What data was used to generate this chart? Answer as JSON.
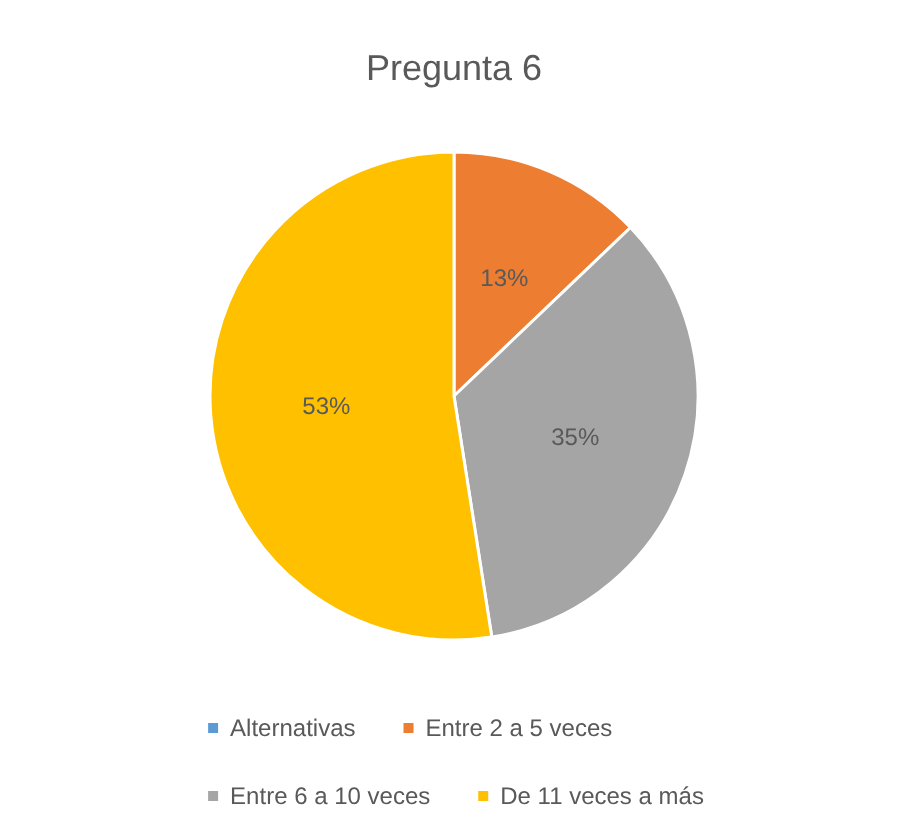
{
  "chart_data": {
    "type": "pie",
    "title": "Pregunta 6",
    "categories": [
      "Alternativas",
      "Entre 2 a 5 veces",
      "Entre 6 a 10 veces",
      "De 11 veces a más"
    ],
    "values": [
      0,
      13,
      35,
      53
    ],
    "colors": [
      "#5b9bd5",
      "#ed7d31",
      "#a5a5a5",
      "#ffc000"
    ],
    "value_labels": [
      null,
      "13%",
      "35%",
      "53%"
    ],
    "legend": "bottom"
  }
}
